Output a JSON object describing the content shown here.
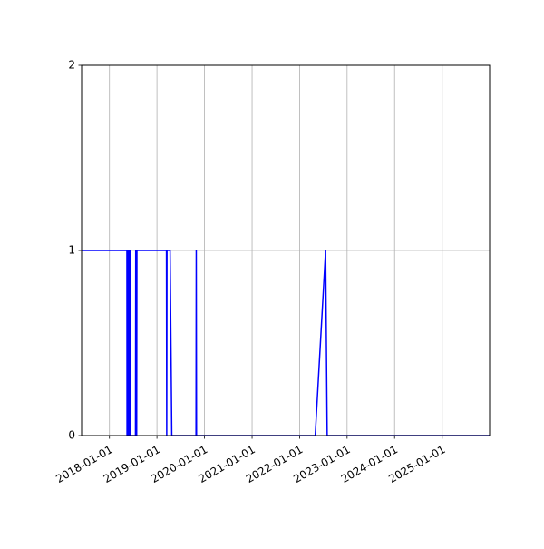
{
  "chart_data": {
    "type": "line",
    "title": "",
    "xlabel": "",
    "ylabel": "",
    "x_axis": {
      "scale": "date",
      "xlim": [
        "2017-06-01",
        "2025-12-31"
      ],
      "ticks": [
        "2018-01-01",
        "2019-01-01",
        "2020-01-01",
        "2021-01-01",
        "2022-01-01",
        "2023-01-01",
        "2024-01-01",
        "2025-01-01"
      ],
      "tick_labels": [
        "2018-01-01",
        "2019-01-01",
        "2020-01-01",
        "2021-01-01",
        "2022-01-01",
        "2023-01-01",
        "2024-01-01",
        "2025-01-01"
      ],
      "tick_rotation_deg": 30
    },
    "y_axis": {
      "ylim": [
        0,
        2
      ],
      "ticks": [
        0,
        1,
        2
      ],
      "tick_labels": [
        "0",
        "1",
        "2"
      ]
    },
    "grid": true,
    "legend": "none",
    "series": [
      {
        "color": "#0000ff",
        "points": [
          [
            "2017-06-01",
            1
          ],
          [
            "2018-05-15",
            1
          ],
          [
            "2018-05-16",
            0
          ],
          [
            "2018-05-18",
            1
          ],
          [
            "2018-05-20",
            1
          ],
          [
            "2018-05-22",
            0
          ],
          [
            "2018-05-24",
            1
          ],
          [
            "2018-05-27",
            1
          ],
          [
            "2018-05-29",
            0
          ],
          [
            "2018-06-01",
            1
          ],
          [
            "2018-06-04",
            1
          ],
          [
            "2018-06-06",
            0
          ],
          [
            "2018-06-08",
            1
          ],
          [
            "2018-06-10",
            1
          ],
          [
            "2018-06-12",
            0
          ],
          [
            "2018-07-20",
            0
          ],
          [
            "2018-07-22",
            1
          ],
          [
            "2018-07-27",
            1
          ],
          [
            "2018-07-29",
            0
          ],
          [
            "2018-07-31",
            1
          ],
          [
            "2019-03-15",
            1
          ],
          [
            "2019-03-17",
            0
          ],
          [
            "2019-03-19",
            1
          ],
          [
            "2019-04-12",
            1
          ],
          [
            "2019-04-25",
            0
          ],
          [
            "2019-10-28",
            0
          ],
          [
            "2019-10-30",
            1
          ],
          [
            "2019-11-01",
            0
          ],
          [
            "2022-05-01",
            0
          ],
          [
            "2022-07-20",
            1
          ],
          [
            "2022-08-01",
            0
          ],
          [
            "2025-12-31",
            0
          ]
        ]
      }
    ]
  }
}
